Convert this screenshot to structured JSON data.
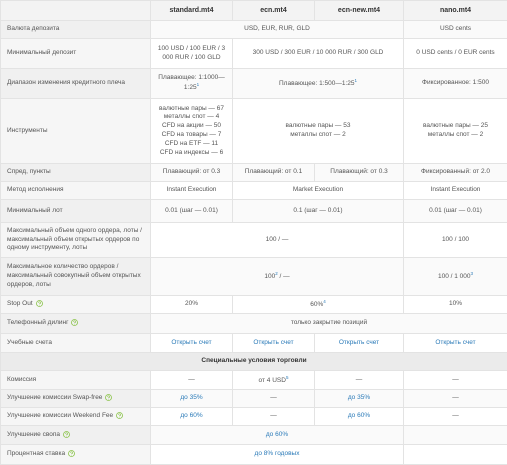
{
  "header": {
    "columns": [
      "standard.mt4",
      "ecn.mt4",
      "ecn-new.mt4",
      "nano.mt4"
    ]
  },
  "rows": [
    {
      "label": "Валюта депозита",
      "cells": [
        "USD, EUR, RUR, GLD",
        "USD cents"
      ]
    },
    {
      "label": "Минимальный депозит",
      "cells": [
        "100 USD / 100 EUR / 3 000 RUR / 100 GLD",
        "300 USD / 300 EUR / 10 000 RUR / 300 GLD",
        "0 USD cents / 0 EUR cents"
      ]
    },
    {
      "label": "Диапазон изменения кредитного плеча",
      "cells": [
        {
          "text": "Плавающее: 1:1000—1:25",
          "sup": "1"
        },
        {
          "text": "Плавающее: 1:500—1:25",
          "sup": "1"
        },
        "Фиксированное: 1:500"
      ]
    },
    {
      "label": "Инструменты",
      "cells": [
        [
          "валютные пары — 67",
          "металлы спот — 4",
          "CFD на акции — 50",
          "CFD на товары — 7",
          "CFD на ETF — 11",
          "CFD на индексы — 6"
        ],
        [
          "валютные пары — 53",
          "металлы спот — 2"
        ],
        [
          "валютные пары — 25",
          "металлы спот — 2"
        ]
      ]
    },
    {
      "label": "Спред, пункты",
      "cells": [
        "Плавающий: от 0.3",
        "Плавающий: от 0.1",
        "Плавающий: от 0.3",
        "Фиксированный: от 2.0"
      ]
    },
    {
      "label": "Метод исполнения",
      "cells": [
        "Instant Execution",
        "Market Execution",
        "Instant Execution"
      ]
    },
    {
      "label": "Минимальный лот",
      "cells": [
        "0.01 (шаг — 0.01)",
        "0.1 (шаг — 0.01)",
        "0.01 (шаг — 0.01)"
      ]
    },
    {
      "label": "Максимальный объем одного ордера, лоты / максимальный объем открытых ордеров по одному инструменту, лоты",
      "cells": [
        "100 / —",
        "100 / 100"
      ]
    },
    {
      "label": "Максимальное количество ордеров / максимальный совокупный объем открытых ордеров, лоты",
      "cells": [
        {
          "text": "100",
          "sup": "2",
          "rest": " / —"
        },
        {
          "text": "100 / 1 000",
          "sup": "3"
        }
      ]
    },
    {
      "label": "Stop Out",
      "cells": [
        "20%",
        {
          "text": "60%",
          "sup": "4"
        },
        "10%"
      ]
    },
    {
      "label": "Телефонный дилинг",
      "cells": [
        "только закрытие позиций"
      ]
    },
    {
      "label": "Учебные счета",
      "cells": [
        "Открыть счет",
        "Открыть счет",
        "Открыть счет",
        "Открыть счет"
      ]
    }
  ],
  "section": "Специальные условия торговли",
  "special_rows": [
    {
      "label": "Комиссия",
      "cells": [
        "—",
        {
          "text": "от 4 USD",
          "sup": "5"
        },
        "—",
        "—"
      ]
    },
    {
      "label": "Улучшение комиссии Swap-free",
      "cells": [
        "до 35%",
        "—",
        "до 35%",
        "—"
      ]
    },
    {
      "label": "Улучшение комиссии Weekend Fee",
      "cells": [
        "до 60%",
        "—",
        "до 60%",
        "—"
      ]
    },
    {
      "label": "Улучшение свопа",
      "cells": [
        "до 60%"
      ]
    },
    {
      "label": "Процентная ставка",
      "cells": [
        "до 8% годовых"
      ]
    }
  ]
}
